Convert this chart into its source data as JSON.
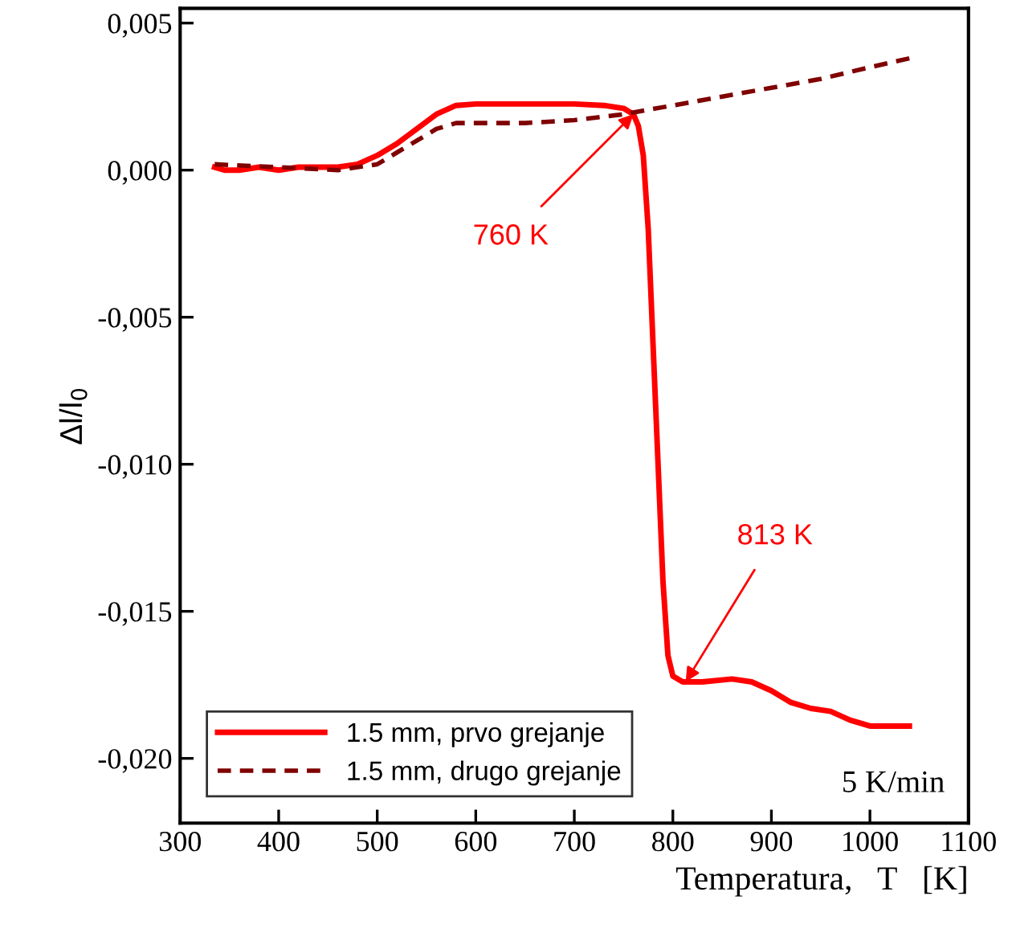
{
  "chart_data": {
    "type": "line",
    "xlabel": "Temperatura,   T   [K]",
    "ylabel": "Δl/l$_{0}$",
    "xlim": [
      300,
      1100
    ],
    "xticks": [
      300,
      400,
      500,
      600,
      700,
      800,
      900,
      1000,
      1100
    ],
    "ylim": [
      -0.0222,
      0.0055
    ],
    "yticks": [
      {
        "value": 0.005,
        "label": "0,005"
      },
      {
        "value": 0.0,
        "label": "0,000"
      },
      {
        "value": -0.005,
        "label": "-0,005"
      },
      {
        "value": -0.01,
        "label": "-0,010"
      },
      {
        "value": -0.015,
        "label": "-0,015"
      },
      {
        "value": -0.02,
        "label": "-0,020"
      }
    ],
    "legend": "bottom left",
    "grid": false,
    "series": [
      {
        "name": "1.5 mm, prvo grejanje",
        "color": "#ff0000",
        "line_style": "solid",
        "x": [
          335,
          345,
          360,
          380,
          400,
          420,
          460,
          480,
          500,
          520,
          540,
          560,
          580,
          600,
          650,
          700,
          730,
          750,
          760,
          765,
          770,
          775,
          780,
          785,
          790,
          795,
          800,
          810,
          830,
          860,
          880,
          900,
          920,
          940,
          960,
          980,
          1000,
          1020,
          1040
        ],
        "values": [
          0.0001,
          0.0,
          0.0,
          0.0001,
          0.0,
          0.0001,
          0.0001,
          0.0002,
          0.0005,
          0.0009,
          0.0014,
          0.0019,
          0.0022,
          0.00225,
          0.00225,
          0.00225,
          0.0022,
          0.0021,
          0.0019,
          0.0015,
          0.0005,
          -0.002,
          -0.006,
          -0.01,
          -0.014,
          -0.0165,
          -0.0172,
          -0.0174,
          -0.0174,
          -0.0173,
          -0.0174,
          -0.0177,
          -0.0181,
          -0.0183,
          -0.0184,
          -0.0187,
          -0.0189,
          -0.0189,
          -0.0189
        ]
      },
      {
        "name": "1.5 mm, drugo grejanje",
        "color": "#800000",
        "line_style": "dashed",
        "x": [
          335,
          400,
          460,
          480,
          500,
          520,
          540,
          560,
          580,
          600,
          650,
          700,
          750,
          800,
          850,
          900,
          950,
          1000,
          1040
        ],
        "values": [
          0.0002,
          0.0001,
          0.0,
          0.0001,
          0.0002,
          0.0006,
          0.001,
          0.0014,
          0.0016,
          0.0016,
          0.0016,
          0.0017,
          0.0019,
          0.0022,
          0.0025,
          0.0028,
          0.0031,
          0.0035,
          0.0038
        ]
      }
    ],
    "annotations": [
      {
        "text": "760 K",
        "x": 760,
        "y": 0.0019
      },
      {
        "text": "813 K",
        "x": 813,
        "y": -0.0174
      },
      "5 K/min"
    ]
  }
}
